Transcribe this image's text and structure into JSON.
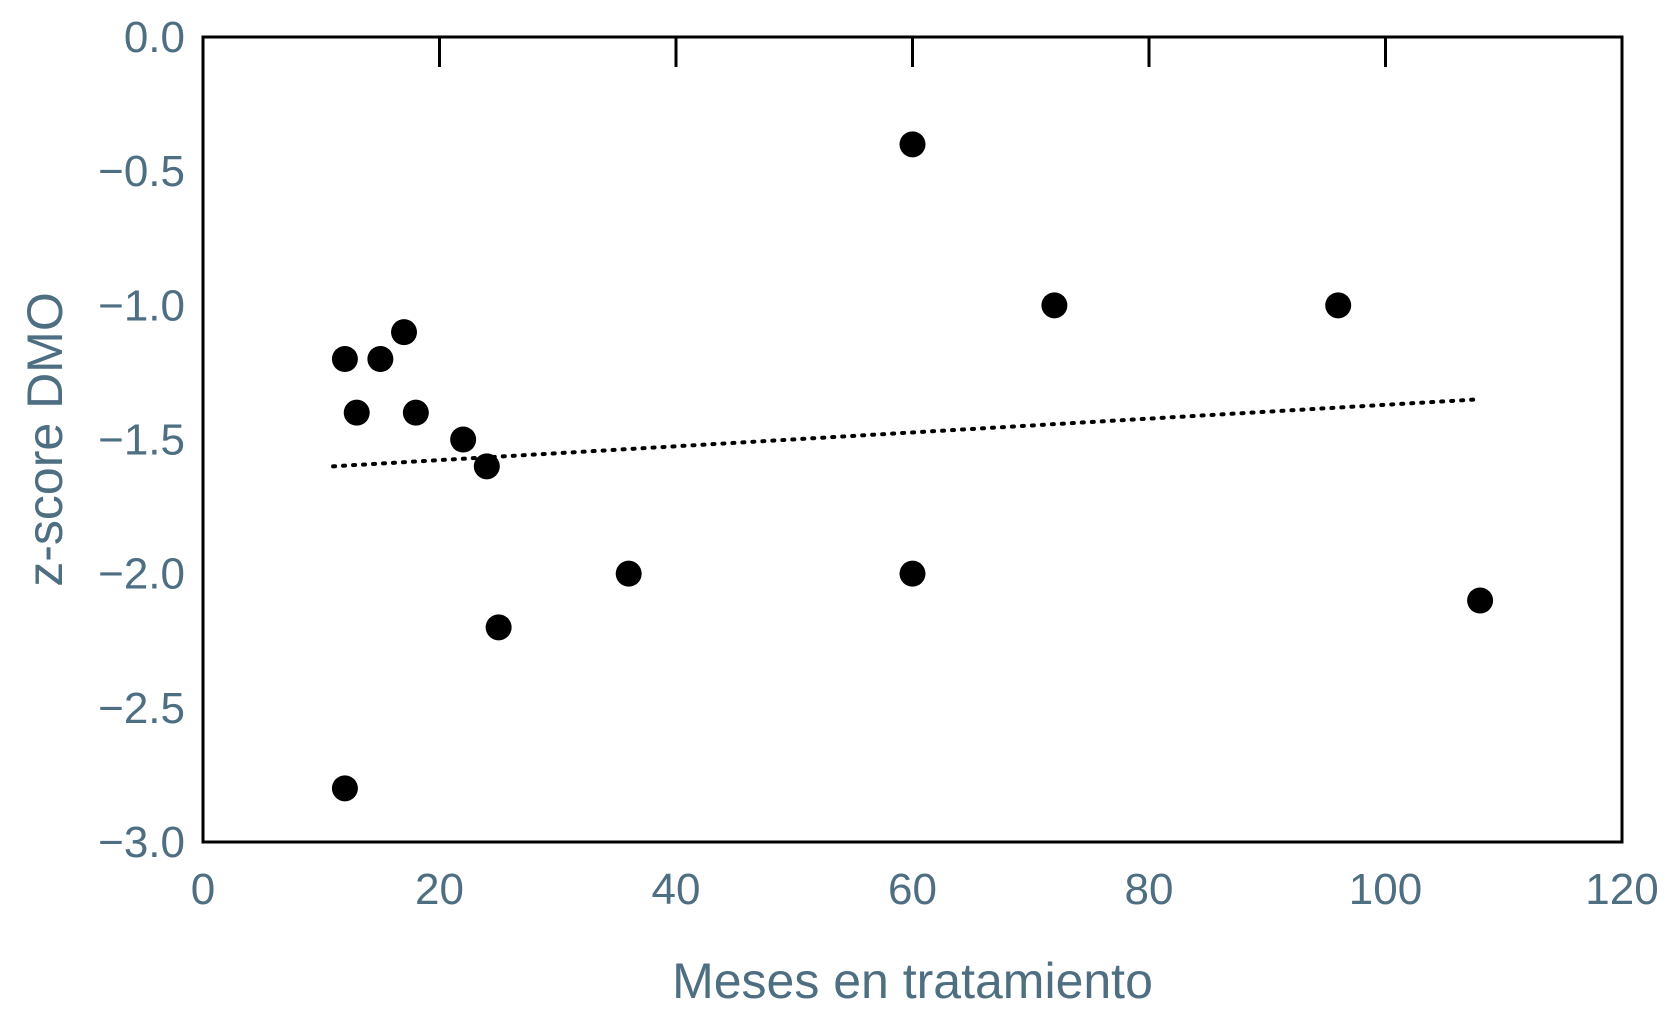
{
  "chart_data": {
    "type": "scatter",
    "title": "",
    "xlabel": "Meses en tratamiento",
    "ylabel": "z-score DMO",
    "xlim": [
      0,
      120
    ],
    "ylim": [
      -3.0,
      0.0
    ],
    "x_ticks": [
      0,
      20,
      40,
      60,
      80,
      100,
      120
    ],
    "x_tick_labels": [
      "0",
      "20",
      "40",
      "60",
      "80",
      "100",
      "120"
    ],
    "y_ticks": [
      0.0,
      -0.5,
      -1.0,
      -1.5,
      -2.0,
      -2.5,
      -3.0
    ],
    "y_tick_labels": [
      "0.0",
      "−0.5",
      "−1.0",
      "−1.5",
      "−2.0",
      "−2.5",
      "−3.0"
    ],
    "grid": false,
    "series": [
      {
        "points": [
          {
            "x": 12,
            "y": -1.2
          },
          {
            "x": 13,
            "y": -1.4
          },
          {
            "x": 15,
            "y": -1.2
          },
          {
            "x": 17,
            "y": -1.1
          },
          {
            "x": 18,
            "y": -1.4
          },
          {
            "x": 22,
            "y": -1.5
          },
          {
            "x": 24,
            "y": -1.6
          },
          {
            "x": 25,
            "y": -2.2
          },
          {
            "x": 36,
            "y": -2.0
          },
          {
            "x": 12,
            "y": -2.8
          },
          {
            "x": 60,
            "y": -0.4
          },
          {
            "x": 60,
            "y": -2.0
          },
          {
            "x": 72,
            "y": -1.0
          },
          {
            "x": 96,
            "y": -1.0
          },
          {
            "x": 108,
            "y": -2.1
          }
        ]
      }
    ],
    "trendline": {
      "style": "dotted",
      "x": [
        11,
        108
      ],
      "y": [
        -1.6,
        -1.35
      ]
    },
    "colors": {
      "axis_text": "#4e6e82",
      "marker": "#000000",
      "frame": "#000000"
    }
  }
}
